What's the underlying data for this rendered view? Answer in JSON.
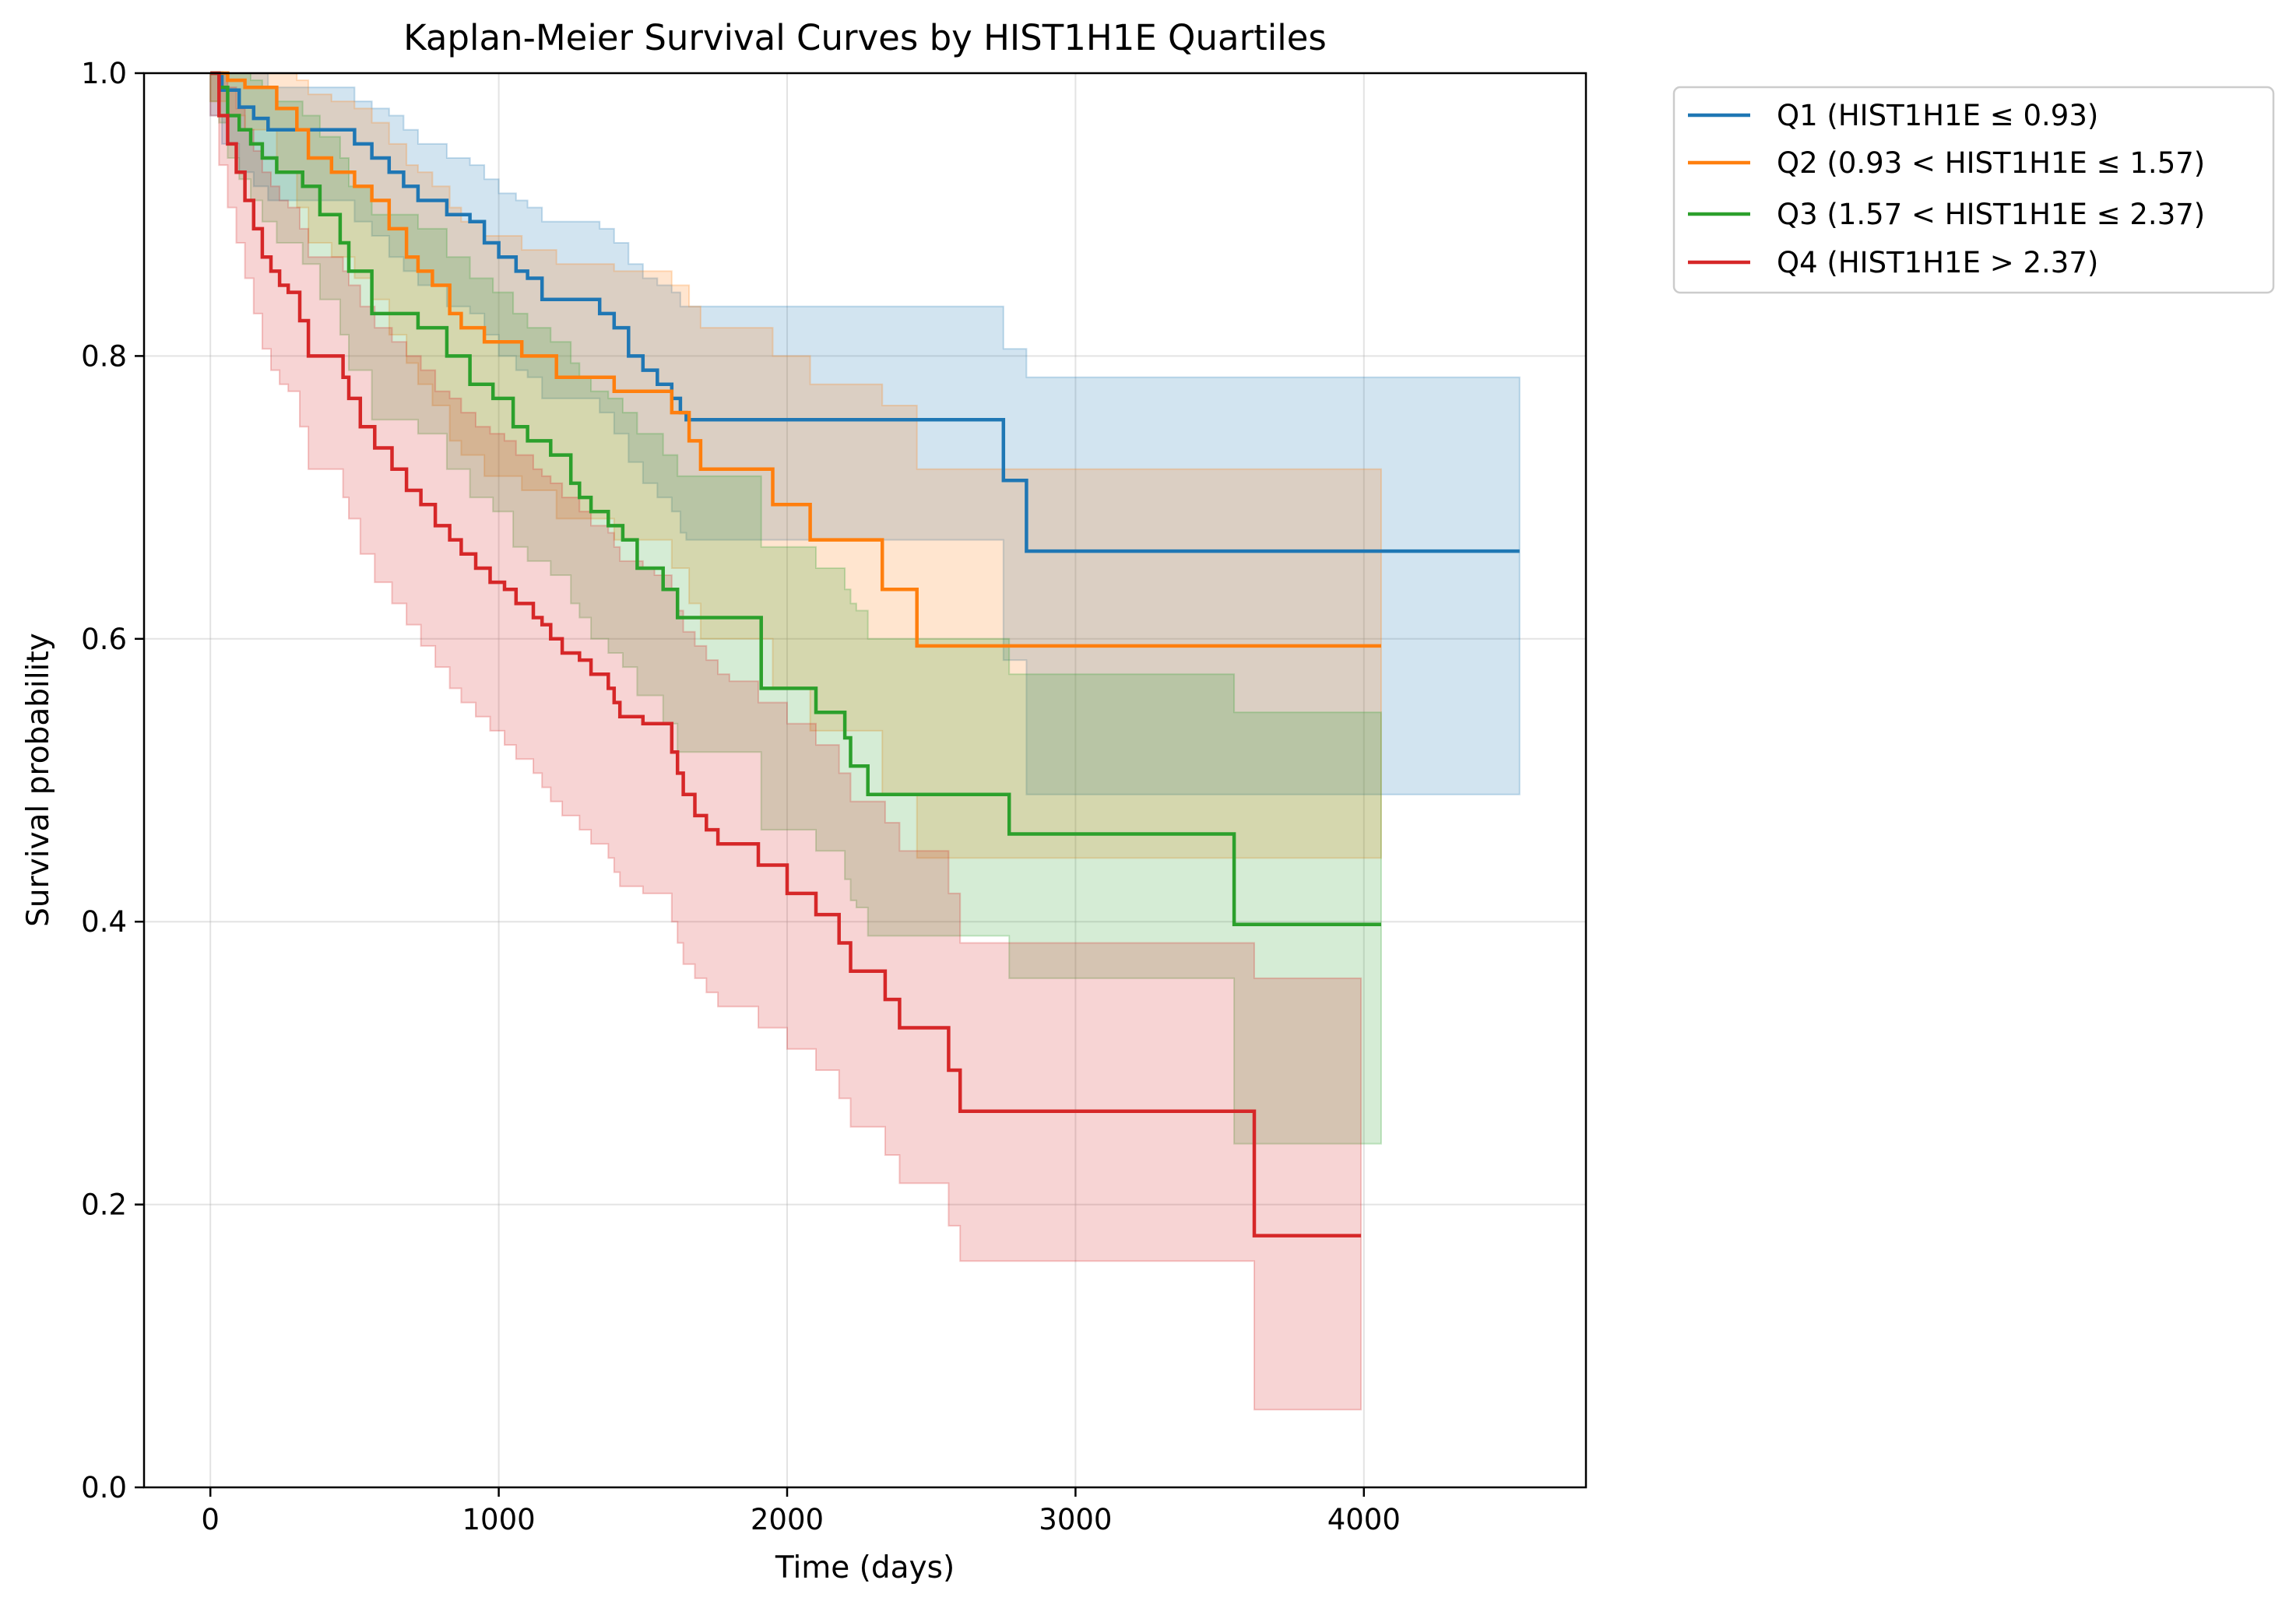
{
  "chart_data": {
    "type": "line",
    "subtype": "kaplan-meier step survival curves with confidence bands",
    "title": "Kaplan-Meier Survival Curves by HIST1H1E Quartiles",
    "xlabel": "Time (days)",
    "ylabel": "Survival probability",
    "xlim": [
      -230,
      4770
    ],
    "ylim": [
      0.0,
      1.0
    ],
    "xticks": [
      0,
      1000,
      2000,
      3000,
      4000
    ],
    "yticks": [
      0.0,
      0.2,
      0.4,
      0.6,
      0.8,
      1.0
    ],
    "xtick_labels": [
      "0",
      "1000",
      "2000",
      "3000",
      "4000"
    ],
    "ytick_labels": [
      "0.0",
      "0.2",
      "0.4",
      "0.6",
      "0.8",
      "1.0"
    ],
    "grid": true,
    "legend_position": "outside-upper-right",
    "series": [
      {
        "name": "Q1 (HIST1H1E ≤ 0.93)",
        "color": "#1f77b4",
        "x": [
          0,
          40,
          100,
          150,
          200,
          350,
          500,
          560,
          620,
          670,
          720,
          820,
          900,
          950,
          1000,
          1060,
          1100,
          1150,
          1350,
          1400,
          1450,
          1500,
          1550,
          1600,
          1630,
          1650,
          1720,
          2750,
          2830,
          4540
        ],
        "y": [
          1.0,
          0.988,
          0.976,
          0.968,
          0.96,
          0.96,
          0.95,
          0.94,
          0.93,
          0.92,
          0.91,
          0.9,
          0.895,
          0.88,
          0.87,
          0.86,
          0.855,
          0.84,
          0.83,
          0.82,
          0.8,
          0.79,
          0.78,
          0.77,
          0.76,
          0.755,
          0.755,
          0.712,
          0.662,
          0.662
        ],
        "ci_upper": [
          1.0,
          1.0,
          1.0,
          1.0,
          0.99,
          0.99,
          0.98,
          0.975,
          0.97,
          0.96,
          0.95,
          0.94,
          0.935,
          0.925,
          0.915,
          0.91,
          0.905,
          0.895,
          0.89,
          0.88,
          0.865,
          0.855,
          0.85,
          0.845,
          0.835,
          0.835,
          0.835,
          0.805,
          0.785,
          0.785
        ],
        "ci_lower": [
          0.97,
          0.95,
          0.93,
          0.92,
          0.91,
          0.91,
          0.895,
          0.885,
          0.87,
          0.86,
          0.85,
          0.835,
          0.83,
          0.815,
          0.8,
          0.79,
          0.785,
          0.77,
          0.76,
          0.745,
          0.725,
          0.71,
          0.7,
          0.69,
          0.675,
          0.67,
          0.67,
          0.585,
          0.49,
          0.49
        ]
      },
      {
        "name": "Q2 (0.93 < HIST1H1E ≤ 1.57)",
        "color": "#ff7f0e",
        "x": [
          0,
          60,
          120,
          230,
          300,
          340,
          420,
          500,
          560,
          620,
          680,
          720,
          770,
          830,
          870,
          950,
          1080,
          1200,
          1400,
          1600,
          1660,
          1700,
          1950,
          2080,
          2330,
          2450,
          4060
        ],
        "y": [
          1.0,
          0.995,
          0.99,
          0.975,
          0.96,
          0.94,
          0.93,
          0.92,
          0.91,
          0.89,
          0.87,
          0.86,
          0.85,
          0.83,
          0.82,
          0.81,
          0.8,
          0.785,
          0.775,
          0.76,
          0.74,
          0.72,
          0.695,
          0.67,
          0.635,
          0.595,
          0.595
        ],
        "ci_upper": [
          1.0,
          1.0,
          1.0,
          1.0,
          0.995,
          0.985,
          0.98,
          0.975,
          0.965,
          0.95,
          0.935,
          0.93,
          0.92,
          0.905,
          0.895,
          0.885,
          0.875,
          0.865,
          0.86,
          0.85,
          0.835,
          0.82,
          0.8,
          0.78,
          0.765,
          0.72,
          0.72
        ],
        "ci_lower": [
          0.98,
          0.97,
          0.96,
          0.93,
          0.905,
          0.88,
          0.87,
          0.855,
          0.84,
          0.815,
          0.795,
          0.78,
          0.765,
          0.74,
          0.73,
          0.715,
          0.705,
          0.685,
          0.67,
          0.65,
          0.625,
          0.6,
          0.565,
          0.535,
          0.49,
          0.445,
          0.445
        ]
      },
      {
        "name": "Q3 (1.57 < HIST1H1E ≤ 2.37)",
        "color": "#2ca02c",
        "x": [
          0,
          30,
          60,
          100,
          140,
          180,
          230,
          320,
          380,
          450,
          480,
          560,
          720,
          820,
          900,
          980,
          1050,
          1100,
          1180,
          1250,
          1280,
          1320,
          1380,
          1430,
          1480,
          1570,
          1620,
          1910,
          2100,
          2200,
          2220,
          2240,
          2280,
          2770,
          3550,
          4060
        ],
        "y": [
          1.0,
          0.99,
          0.97,
          0.96,
          0.95,
          0.94,
          0.93,
          0.92,
          0.9,
          0.88,
          0.86,
          0.83,
          0.82,
          0.8,
          0.78,
          0.77,
          0.75,
          0.74,
          0.73,
          0.71,
          0.7,
          0.69,
          0.68,
          0.67,
          0.65,
          0.635,
          0.615,
          0.565,
          0.548,
          0.53,
          0.51,
          0.51,
          0.49,
          0.462,
          0.398,
          0.398
        ],
        "ci_upper": [
          1.0,
          1.0,
          1.0,
          1.0,
          0.995,
          0.99,
          0.98,
          0.97,
          0.955,
          0.94,
          0.92,
          0.9,
          0.89,
          0.87,
          0.855,
          0.845,
          0.83,
          0.82,
          0.81,
          0.795,
          0.785,
          0.775,
          0.77,
          0.76,
          0.745,
          0.73,
          0.715,
          0.665,
          0.65,
          0.635,
          0.625,
          0.62,
          0.6,
          0.575,
          0.548,
          0.548
        ],
        "ci_lower": [
          0.98,
          0.965,
          0.94,
          0.925,
          0.91,
          0.895,
          0.88,
          0.865,
          0.84,
          0.815,
          0.79,
          0.755,
          0.745,
          0.72,
          0.7,
          0.69,
          0.665,
          0.655,
          0.645,
          0.625,
          0.615,
          0.6,
          0.59,
          0.58,
          0.56,
          0.54,
          0.52,
          0.465,
          0.45,
          0.43,
          0.415,
          0.41,
          0.39,
          0.36,
          0.243,
          0.243
        ]
      },
      {
        "name": "Q4 (HIST1H1E > 2.37)",
        "color": "#d62728",
        "x": [
          0,
          30,
          60,
          90,
          120,
          150,
          180,
          210,
          240,
          270,
          310,
          340,
          460,
          480,
          520,
          570,
          630,
          680,
          730,
          780,
          830,
          870,
          920,
          970,
          1020,
          1060,
          1120,
          1150,
          1180,
          1220,
          1280,
          1320,
          1380,
          1400,
          1420,
          1500,
          1540,
          1580,
          1600,
          1620,
          1640,
          1680,
          1720,
          1760,
          1800,
          1860,
          1900,
          2000,
          2100,
          2180,
          2220,
          2340,
          2390,
          2420,
          2560,
          2600,
          3620,
          3990
        ],
        "y": [
          1.0,
          0.97,
          0.95,
          0.93,
          0.91,
          0.89,
          0.87,
          0.86,
          0.85,
          0.845,
          0.825,
          0.8,
          0.785,
          0.77,
          0.75,
          0.735,
          0.72,
          0.705,
          0.695,
          0.68,
          0.67,
          0.66,
          0.65,
          0.64,
          0.635,
          0.625,
          0.615,
          0.61,
          0.6,
          0.59,
          0.585,
          0.575,
          0.565,
          0.555,
          0.545,
          0.54,
          0.54,
          0.54,
          0.52,
          0.505,
          0.49,
          0.475,
          0.465,
          0.455,
          0.455,
          0.455,
          0.44,
          0.42,
          0.405,
          0.385,
          0.365,
          0.345,
          0.325,
          0.325,
          0.295,
          0.266,
          0.178,
          0.178
        ],
        "ci_upper": [
          1.0,
          1.0,
          0.99,
          0.975,
          0.96,
          0.945,
          0.93,
          0.92,
          0.91,
          0.905,
          0.89,
          0.87,
          0.86,
          0.85,
          0.835,
          0.82,
          0.81,
          0.8,
          0.79,
          0.775,
          0.77,
          0.76,
          0.75,
          0.745,
          0.74,
          0.73,
          0.72,
          0.715,
          0.71,
          0.7,
          0.69,
          0.68,
          0.675,
          0.665,
          0.655,
          0.65,
          0.645,
          0.645,
          0.635,
          0.62,
          0.605,
          0.595,
          0.585,
          0.575,
          0.57,
          0.57,
          0.555,
          0.54,
          0.525,
          0.505,
          0.485,
          0.47,
          0.45,
          0.45,
          0.42,
          0.385,
          0.36,
          0.36
        ],
        "ci_lower": [
          0.97,
          0.935,
          0.905,
          0.88,
          0.855,
          0.83,
          0.805,
          0.79,
          0.78,
          0.775,
          0.75,
          0.72,
          0.7,
          0.685,
          0.66,
          0.64,
          0.625,
          0.61,
          0.595,
          0.58,
          0.565,
          0.555,
          0.545,
          0.535,
          0.525,
          0.515,
          0.505,
          0.495,
          0.485,
          0.475,
          0.465,
          0.455,
          0.445,
          0.435,
          0.425,
          0.42,
          0.42,
          0.42,
          0.4,
          0.385,
          0.37,
          0.36,
          0.35,
          0.34,
          0.34,
          0.34,
          0.325,
          0.31,
          0.295,
          0.275,
          0.255,
          0.235,
          0.215,
          0.215,
          0.185,
          0.16,
          0.055,
          0.055
        ]
      }
    ]
  }
}
